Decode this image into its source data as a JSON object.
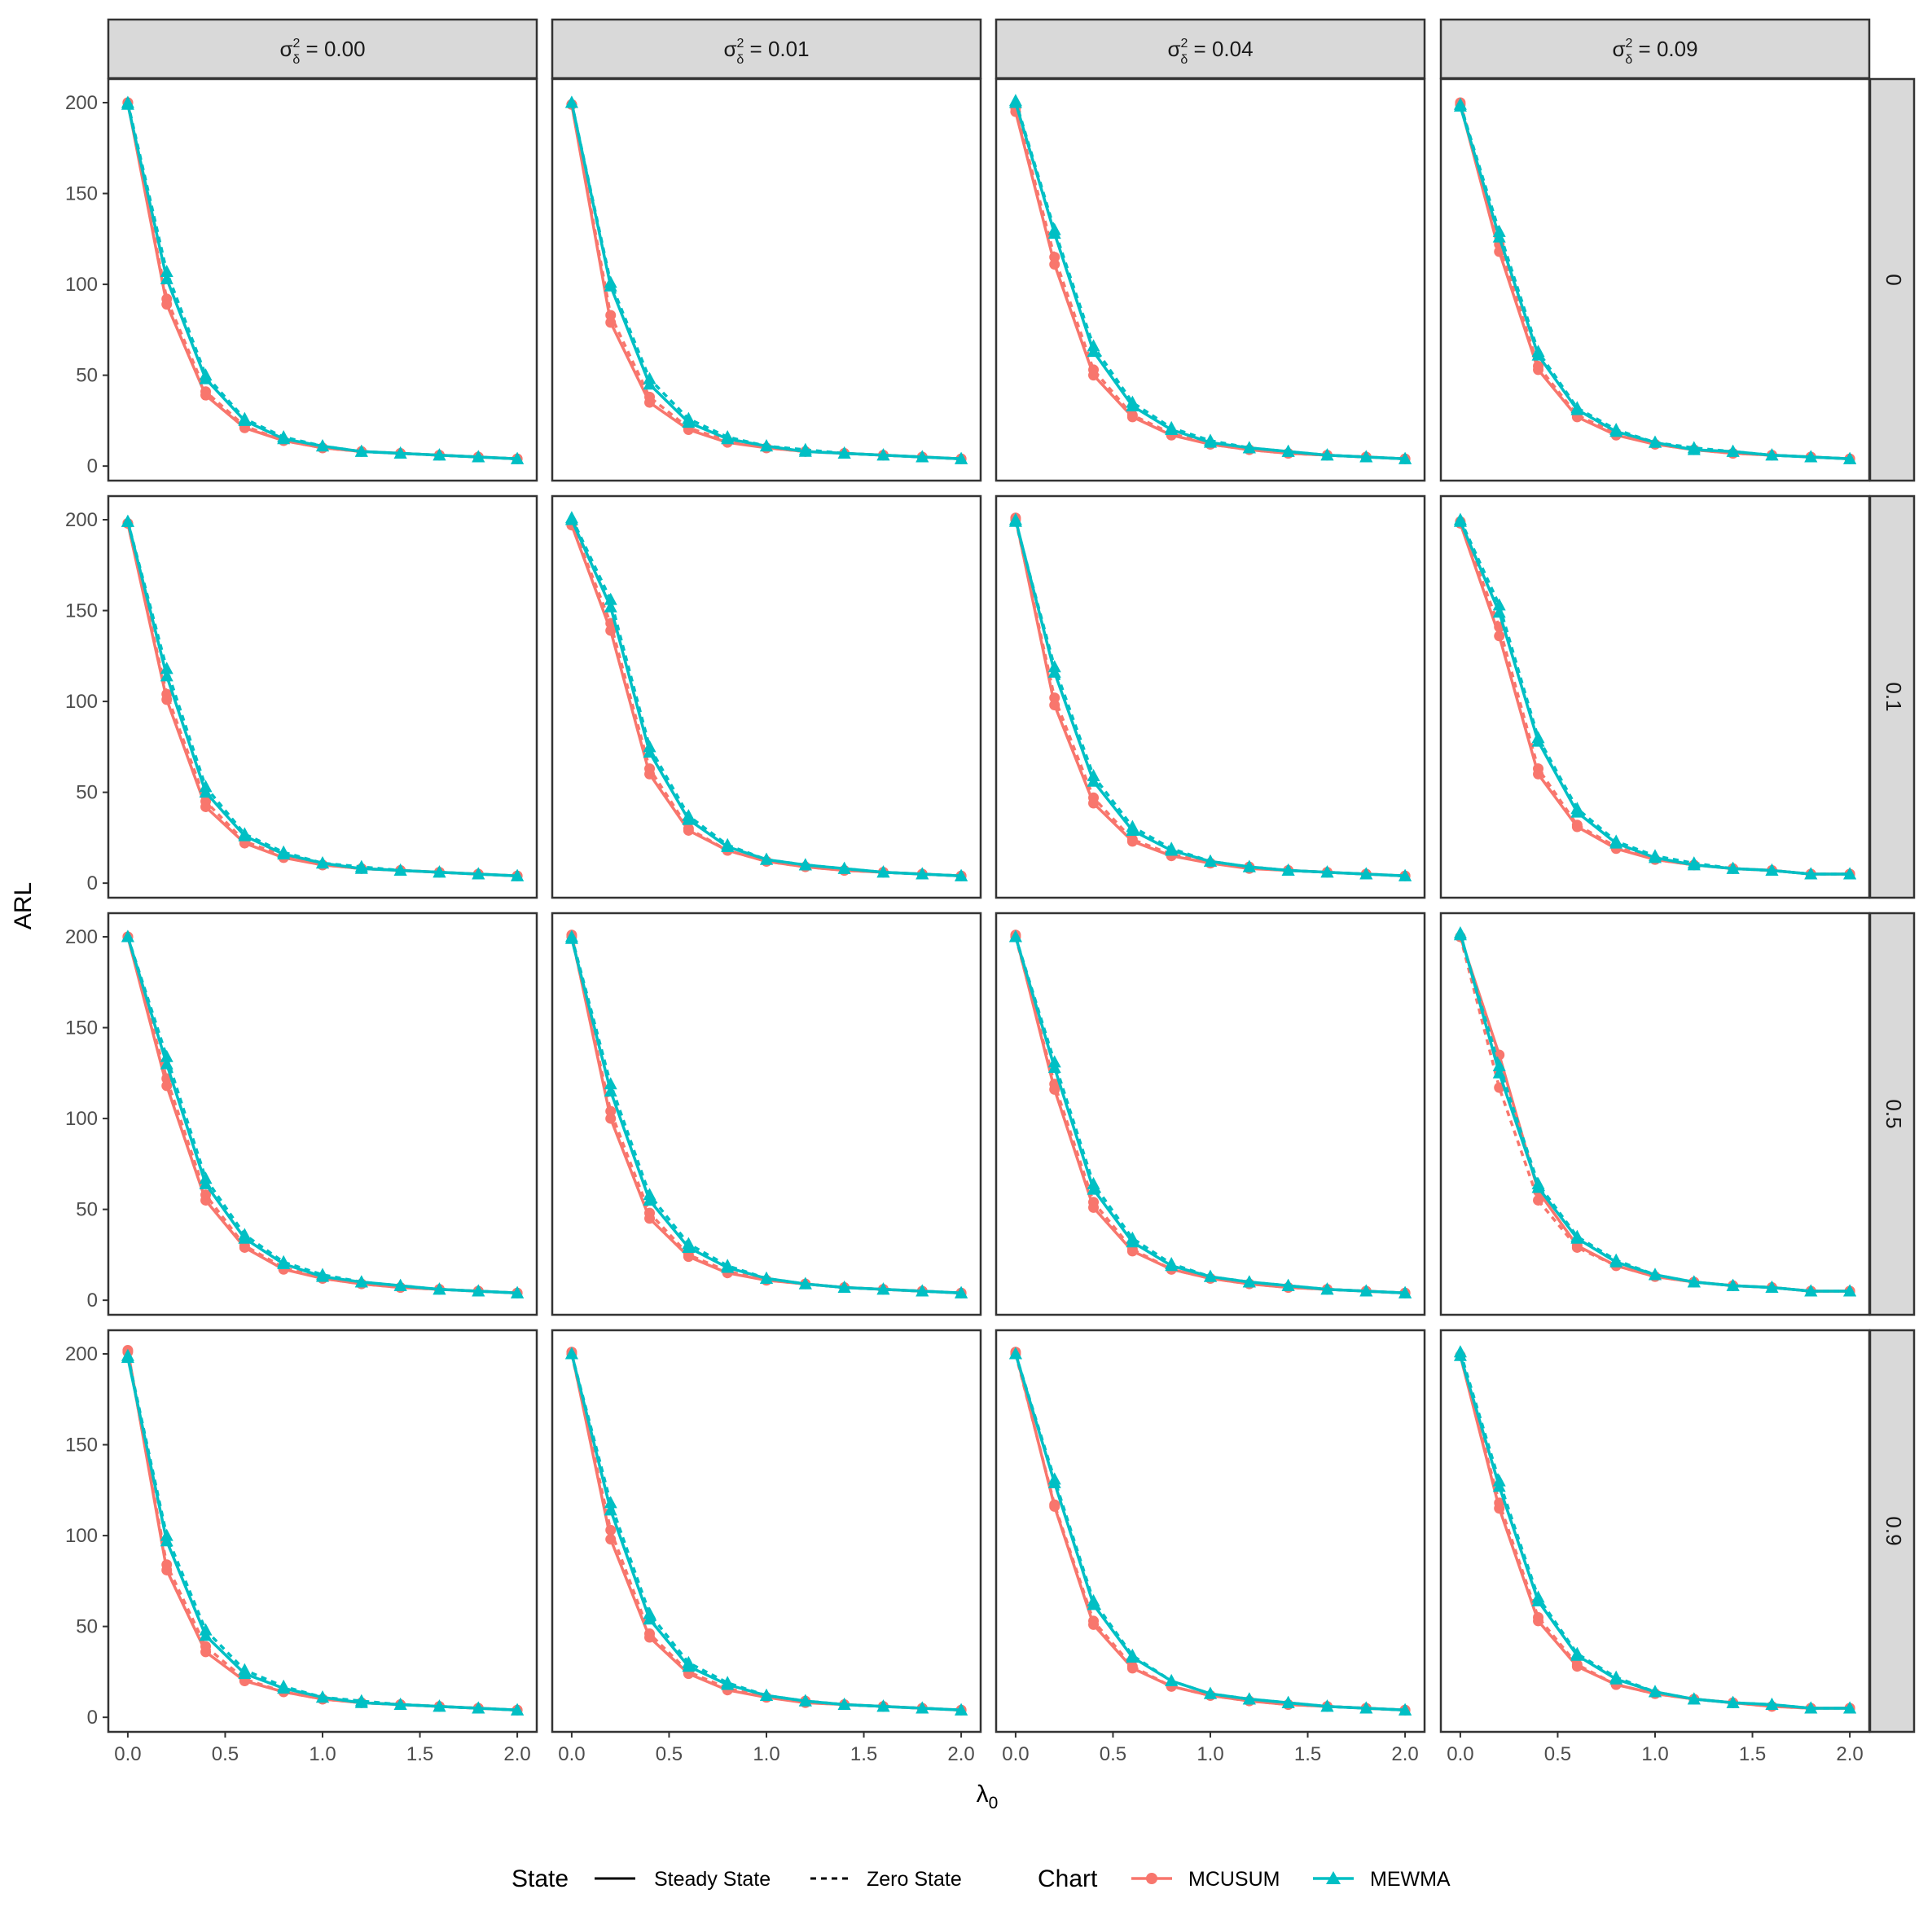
{
  "chart_data": {
    "type": "line",
    "xlabel": "λ0",
    "ylabel": "ARL",
    "x": [
      0.0,
      0.2,
      0.4,
      0.6,
      0.8,
      1.0,
      1.2,
      1.4,
      1.6,
      1.8,
      2.0
    ],
    "xlim": [
      -0.1,
      2.1
    ],
    "ylim": [
      -8,
      213
    ],
    "xticks": [
      0.0,
      0.5,
      1.0,
      1.5,
      2.0
    ],
    "xtick_labels": [
      "0.0",
      "0.5",
      "1.0",
      "1.5",
      "2.0"
    ],
    "yticks": [
      0,
      50,
      100,
      150,
      200
    ],
    "ytick_labels": [
      "0",
      "50",
      "100",
      "150",
      "200"
    ],
    "col_facet_labels": [
      "0.00",
      "0.01",
      "0.04",
      "0.09"
    ],
    "col_facet_prefix": "σ",
    "col_facet_superscript": "2",
    "col_facet_subscript": "δ",
    "row_facet_labels": [
      "0",
      "0.1",
      "0.5",
      "0.9"
    ],
    "legend": {
      "position": "bottom",
      "state_title": "State",
      "state_items": [
        "Steady State",
        "Zero State"
      ],
      "chart_title": "Chart",
      "chart_items": [
        "MCUSUM",
        "MEWMA"
      ]
    },
    "colors": {
      "MCUSUM": "#F8766D",
      "MEWMA": "#00BFC4",
      "strip_bg": "#D9D9D9",
      "panel_border": "#333333"
    },
    "panels": [
      [
        {
          "MCUSUM_steady": [
            200,
            89,
            39,
            21,
            14,
            10,
            8,
            7,
            6,
            5,
            4
          ],
          "MCUSUM_zero": [
            200,
            92,
            41,
            22,
            14,
            10,
            8,
            7,
            6,
            5,
            4
          ],
          "MEWMA_steady": [
            199,
            103,
            48,
            25,
            15,
            11,
            8,
            7,
            6,
            5,
            4
          ],
          "MEWMA_zero": [
            200,
            107,
            50,
            26,
            16,
            11,
            8,
            7,
            6,
            5,
            4
          ]
        },
        {
          "MCUSUM_steady": [
            199,
            79,
            35,
            20,
            13,
            10,
            8,
            7,
            6,
            5,
            4
          ],
          "MCUSUM_zero": [
            199,
            83,
            38,
            21,
            14,
            10,
            8,
            7,
            6,
            5,
            4
          ],
          "MEWMA_steady": [
            200,
            99,
            45,
            24,
            15,
            11,
            8,
            7,
            6,
            5,
            4
          ],
          "MEWMA_zero": [
            200,
            101,
            48,
            26,
            16,
            11,
            9,
            7,
            6,
            5,
            4
          ]
        },
        {
          "MCUSUM_steady": [
            195,
            111,
            50,
            27,
            17,
            12,
            9,
            7,
            6,
            5,
            4
          ],
          "MCUSUM_zero": [
            197,
            115,
            53,
            28,
            18,
            12,
            9,
            7,
            6,
            5,
            4
          ],
          "MEWMA_steady": [
            200,
            128,
            63,
            33,
            20,
            13,
            10,
            8,
            6,
            5,
            4
          ],
          "MEWMA_zero": [
            201,
            130,
            66,
            35,
            21,
            14,
            10,
            8,
            6,
            5,
            4
          ]
        },
        {
          "MCUSUM_steady": [
            199,
            118,
            53,
            27,
            17,
            12,
            9,
            7,
            6,
            5,
            4
          ],
          "MCUSUM_zero": [
            200,
            122,
            55,
            28,
            18,
            12,
            9,
            7,
            6,
            5,
            4
          ],
          "MEWMA_steady": [
            198,
            126,
            61,
            31,
            19,
            13,
            9,
            8,
            6,
            5,
            4
          ],
          "MEWMA_zero": [
            199,
            129,
            63,
            32,
            20,
            13,
            10,
            8,
            6,
            5,
            4
          ]
        }
      ],
      [
        {
          "MCUSUM_steady": [
            198,
            101,
            42,
            22,
            14,
            10,
            8,
            7,
            6,
            5,
            4
          ],
          "MCUSUM_zero": [
            198,
            104,
            45,
            23,
            15,
            10,
            8,
            7,
            6,
            5,
            4
          ],
          "MEWMA_steady": [
            199,
            114,
            50,
            26,
            16,
            11,
            8,
            7,
            6,
            5,
            4
          ],
          "MEWMA_zero": [
            199,
            118,
            53,
            27,
            17,
            11,
            9,
            7,
            6,
            5,
            4
          ]
        },
        {
          "MCUSUM_steady": [
            197,
            139,
            60,
            29,
            18,
            12,
            9,
            7,
            6,
            5,
            4
          ],
          "MCUSUM_zero": [
            198,
            143,
            63,
            30,
            18,
            12,
            9,
            7,
            6,
            5,
            4
          ],
          "MEWMA_steady": [
            200,
            152,
            72,
            35,
            20,
            13,
            10,
            8,
            6,
            5,
            4
          ],
          "MEWMA_zero": [
            201,
            156,
            75,
            37,
            21,
            13,
            10,
            8,
            6,
            5,
            4
          ]
        },
        {
          "MCUSUM_steady": [
            201,
            98,
            44,
            23,
            15,
            11,
            8,
            7,
            6,
            5,
            4
          ],
          "MCUSUM_zero": [
            200,
            102,
            47,
            24,
            16,
            11,
            9,
            7,
            6,
            5,
            4
          ],
          "MEWMA_steady": [
            200,
            116,
            56,
            29,
            18,
            12,
            9,
            7,
            6,
            5,
            4
          ],
          "MEWMA_zero": [
            199,
            119,
            59,
            31,
            19,
            12,
            9,
            7,
            6,
            5,
            4
          ]
        },
        {
          "MCUSUM_steady": [
            198,
            136,
            60,
            31,
            19,
            13,
            10,
            8,
            7,
            5,
            5
          ],
          "MCUSUM_zero": [
            199,
            141,
            63,
            32,
            20,
            13,
            10,
            8,
            7,
            5,
            5
          ],
          "MEWMA_steady": [
            199,
            149,
            78,
            39,
            22,
            14,
            10,
            8,
            7,
            5,
            5
          ],
          "MEWMA_zero": [
            200,
            153,
            80,
            41,
            23,
            15,
            11,
            8,
            7,
            5,
            5
          ]
        }
      ],
      [
        {
          "MCUSUM_steady": [
            200,
            118,
            55,
            29,
            17,
            12,
            9,
            7,
            6,
            5,
            4
          ],
          "MCUSUM_zero": [
            200,
            122,
            58,
            30,
            18,
            12,
            9,
            7,
            6,
            5,
            4
          ],
          "MEWMA_steady": [
            200,
            130,
            64,
            34,
            20,
            13,
            10,
            8,
            6,
            5,
            4
          ],
          "MEWMA_zero": [
            200,
            134,
            67,
            36,
            21,
            14,
            10,
            8,
            6,
            5,
            4
          ]
        },
        {
          "MCUSUM_steady": [
            201,
            100,
            45,
            24,
            15,
            11,
            9,
            7,
            6,
            5,
            4
          ],
          "MCUSUM_zero": [
            200,
            104,
            48,
            25,
            16,
            11,
            9,
            7,
            6,
            5,
            4
          ],
          "MEWMA_steady": [
            199,
            115,
            55,
            29,
            18,
            12,
            9,
            7,
            6,
            5,
            4
          ],
          "MEWMA_zero": [
            200,
            119,
            58,
            31,
            19,
            12,
            9,
            7,
            6,
            5,
            4
          ]
        },
        {
          "MCUSUM_steady": [
            201,
            116,
            51,
            27,
            17,
            12,
            9,
            7,
            6,
            5,
            4
          ],
          "MCUSUM_zero": [
            200,
            119,
            54,
            28,
            17,
            12,
            9,
            7,
            6,
            5,
            4
          ],
          "MEWMA_steady": [
            200,
            128,
            61,
            32,
            19,
            13,
            10,
            8,
            6,
            5,
            4
          ],
          "MEWMA_zero": [
            200,
            131,
            64,
            34,
            20,
            13,
            10,
            8,
            6,
            5,
            4
          ]
        },
        {
          "MCUSUM_steady": [
            200,
            135,
            60,
            30,
            19,
            13,
            10,
            8,
            7,
            5,
            5
          ],
          "MCUSUM_zero": [
            200,
            117,
            55,
            29,
            19,
            13,
            10,
            8,
            7,
            5,
            5
          ],
          "MEWMA_steady": [
            202,
            125,
            62,
            34,
            21,
            14,
            10,
            8,
            7,
            5,
            5
          ],
          "MEWMA_zero": [
            201,
            129,
            64,
            35,
            22,
            14,
            10,
            8,
            7,
            5,
            5
          ]
        }
      ],
      [
        {
          "MCUSUM_steady": [
            202,
            81,
            36,
            20,
            14,
            10,
            8,
            7,
            6,
            5,
            4
          ],
          "MCUSUM_zero": [
            201,
            84,
            39,
            21,
            14,
            10,
            8,
            7,
            6,
            5,
            4
          ],
          "MEWMA_steady": [
            198,
            97,
            45,
            24,
            16,
            11,
            8,
            7,
            6,
            5,
            4
          ],
          "MEWMA_zero": [
            199,
            100,
            48,
            26,
            17,
            11,
            9,
            7,
            6,
            5,
            4
          ]
        },
        {
          "MCUSUM_steady": [
            201,
            98,
            44,
            24,
            15,
            11,
            8,
            7,
            6,
            5,
            4
          ],
          "MCUSUM_zero": [
            200,
            103,
            46,
            25,
            16,
            11,
            9,
            7,
            6,
            5,
            4
          ],
          "MEWMA_steady": [
            200,
            114,
            54,
            28,
            18,
            12,
            9,
            7,
            6,
            5,
            4
          ],
          "MEWMA_zero": [
            200,
            118,
            57,
            30,
            19,
            12,
            9,
            7,
            6,
            5,
            4
          ]
        },
        {
          "MCUSUM_steady": [
            201,
            116,
            51,
            27,
            17,
            12,
            9,
            7,
            6,
            5,
            4
          ],
          "MCUSUM_zero": [
            200,
            117,
            53,
            28,
            17,
            12,
            9,
            7,
            6,
            5,
            4
          ],
          "MEWMA_steady": [
            200,
            129,
            62,
            33,
            20,
            13,
            10,
            8,
            6,
            5,
            4
          ],
          "MEWMA_zero": [
            200,
            131,
            64,
            34,
            20,
            13,
            10,
            8,
            6,
            5,
            4
          ]
        },
        {
          "MCUSUM_steady": [
            199,
            115,
            53,
            28,
            18,
            13,
            10,
            8,
            6,
            5,
            5
          ],
          "MCUSUM_zero": [
            199,
            118,
            55,
            29,
            18,
            13,
            10,
            8,
            6,
            5,
            5
          ],
          "MEWMA_steady": [
            199,
            127,
            64,
            34,
            21,
            14,
            10,
            8,
            7,
            5,
            5
          ],
          "MEWMA_zero": [
            201,
            130,
            66,
            35,
            22,
            14,
            10,
            8,
            7,
            5,
            5
          ]
        }
      ]
    ]
  }
}
